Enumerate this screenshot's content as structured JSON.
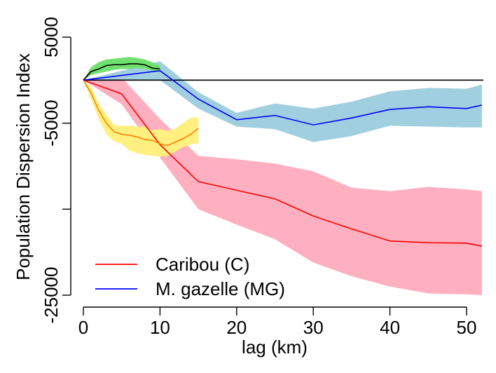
{
  "chart_data": {
    "type": "line",
    "xlabel": "lag (km)",
    "ylabel": "Population Dispersion Index",
    "xlim": [
      0,
      52
    ],
    "ylim": [
      -25000,
      5000
    ],
    "x_ticks": [
      "0",
      "10",
      "20",
      "30",
      "40",
      "50"
    ],
    "y_ticks": [
      "-25000",
      "",
      "-5000",
      "5000"
    ],
    "y_tick_values": [
      -25000,
      -15000,
      -5000,
      5000
    ],
    "x_tick_values": [
      0,
      10,
      20,
      30,
      40,
      50
    ],
    "reference_line": 0,
    "grid": false,
    "legend_position": "bottom-left",
    "legend": [
      {
        "label": "Caribou (C)",
        "color": "#ff0000"
      },
      {
        "label": "M. gazelle (MG)",
        "color": "#0000ff"
      }
    ],
    "series": [
      {
        "name": "Caribou (C)",
        "line_color": "#ff0000",
        "band_color": "#ffb0c0",
        "x": [
          0,
          5,
          10,
          15,
          20,
          25,
          30,
          35,
          40,
          45,
          50,
          52
        ],
        "y": [
          0,
          -1600,
          -7500,
          -11800,
          -12800,
          -13800,
          -15800,
          -17300,
          -18700,
          -18900,
          -18950,
          -19300
        ],
        "lower": [
          0,
          -2800,
          -9000,
          -15000,
          -16800,
          -18500,
          -21200,
          -22800,
          -24000,
          -24800,
          -24900,
          -25000
        ],
        "upper": [
          0,
          300,
          -4500,
          -8800,
          -9200,
          -9700,
          -10600,
          -12500,
          -12900,
          -12400,
          -12700,
          -12900
        ]
      },
      {
        "name": "M. gazelle (MG)",
        "line_color": "#0000ff",
        "band_color": "#a0cfe0",
        "x": [
          0,
          10,
          15,
          20,
          25,
          30,
          35,
          40,
          45,
          50,
          52
        ],
        "y": [
          0,
          1100,
          -2200,
          -4600,
          -4100,
          -5200,
          -4400,
          -3400,
          -3100,
          -3300,
          -2900
        ],
        "lower": [
          0,
          0,
          -3300,
          -5400,
          -5700,
          -7200,
          -6500,
          -5300,
          -5400,
          -5500,
          -5500
        ],
        "upper": [
          0,
          2200,
          -1400,
          -3800,
          -2700,
          -3300,
          -2500,
          -1300,
          -900,
          -1000,
          -500
        ]
      },
      {
        "line_color": "#000000",
        "band_color": "#70e070",
        "x": [
          0,
          1,
          2,
          3,
          4,
          5,
          6,
          7,
          8,
          9,
          10
        ],
        "y": [
          0,
          1000,
          1300,
          1700,
          1800,
          1800,
          1900,
          1900,
          1800,
          1400,
          1300
        ],
        "lower": [
          0,
          600,
          800,
          1000,
          1200,
          1300,
          1300,
          1400,
          1300,
          1100,
          900
        ],
        "upper": [
          0,
          1500,
          2100,
          2400,
          2500,
          2600,
          2700,
          2600,
          2400,
          2100,
          1700
        ]
      },
      {
        "line_color": "#ff8000",
        "band_color": "#fff080",
        "x": [
          0,
          1,
          2,
          3,
          4,
          5,
          6,
          7,
          8,
          9,
          10,
          11,
          12,
          13,
          14,
          15
        ],
        "y": [
          0,
          -1500,
          -3500,
          -5000,
          -6000,
          -6300,
          -6400,
          -6600,
          -6900,
          -7000,
          -7400,
          -7600,
          -7200,
          -6800,
          -6300,
          -5600
        ],
        "lower": [
          0,
          -2200,
          -4500,
          -6300,
          -7100,
          -7400,
          -8200,
          -8500,
          -8700,
          -8800,
          -8900,
          -8800,
          -8300,
          -7800,
          -7500,
          -7300
        ],
        "upper": [
          0,
          -800,
          -2700,
          -4000,
          -5200,
          -5300,
          -5300,
          -5400,
          -5400,
          -5800,
          -5700,
          -5900,
          -5600,
          -5000,
          -4400,
          -4300
        ]
      }
    ]
  }
}
